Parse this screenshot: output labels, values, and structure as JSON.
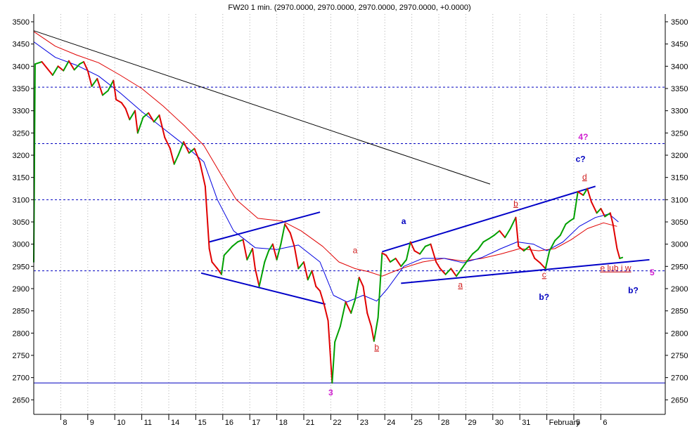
{
  "chart_data": {
    "type": "line",
    "title": "FW20 1 min. (2970.0000, 2970.0000, 2970.0000, 2970.0000, +0.0000)",
    "ylim": [
      2620,
      3530
    ],
    "y_ticks": [
      3500,
      3450,
      3400,
      3350,
      3300,
      3250,
      3200,
      3150,
      3100,
      3050,
      3000,
      2950,
      2900,
      2850,
      2800,
      2750,
      2700,
      2650
    ],
    "x_labels": [
      {
        "label": "8",
        "x": 1
      },
      {
        "label": "9",
        "x": 2
      },
      {
        "label": "10",
        "x": 3
      },
      {
        "label": "11",
        "x": 4
      },
      {
        "label": "14",
        "x": 5
      },
      {
        "label": "15",
        "x": 6
      },
      {
        "label": "16",
        "x": 7
      },
      {
        "label": "17",
        "x": 8
      },
      {
        "label": "18",
        "x": 9
      },
      {
        "label": "21",
        "x": 10
      },
      {
        "label": "22",
        "x": 11
      },
      {
        "label": "23",
        "x": 12
      },
      {
        "label": "24",
        "x": 13
      },
      {
        "label": "25",
        "x": 14
      },
      {
        "label": "28",
        "x": 15
      },
      {
        "label": "29",
        "x": 16
      },
      {
        "label": "30",
        "x": 17
      },
      {
        "label": "31",
        "x": 18
      },
      {
        "label": "February",
        "x": 19
      },
      {
        "label": "5",
        "x": 20
      },
      {
        "label": "6",
        "x": 21
      }
    ],
    "xlim": [
      0.0,
      21.2
    ],
    "grid": {
      "horizontal": false,
      "vertical": true
    },
    "horizontal_levels": [
      {
        "y": 3353,
        "style": "dashed",
        "color": "#0000c0"
      },
      {
        "y": 3226,
        "style": "dashed",
        "color": "#0000c0"
      },
      {
        "y": 3100,
        "style": "dashed",
        "color": "#0000c0"
      },
      {
        "y": 2940,
        "style": "dashed",
        "color": "#0000c0"
      },
      {
        "y": 2688,
        "style": "solid",
        "color": "#0000c0"
      }
    ],
    "price_series": [
      [
        0.0,
        2960
      ],
      [
        0.05,
        3405
      ],
      [
        0.3,
        3410
      ],
      [
        0.5,
        3395
      ],
      [
        0.7,
        3380
      ],
      [
        0.9,
        3400
      ],
      [
        1.1,
        3390
      ],
      [
        1.3,
        3412
      ],
      [
        1.5,
        3392
      ],
      [
        1.7,
        3405
      ],
      [
        1.85,
        3410
      ],
      [
        2.0,
        3390
      ],
      [
        2.15,
        3355
      ],
      [
        2.35,
        3372
      ],
      [
        2.55,
        3335
      ],
      [
        2.75,
        3345
      ],
      [
        2.95,
        3368
      ],
      [
        3.05,
        3325
      ],
      [
        3.25,
        3318
      ],
      [
        3.4,
        3305
      ],
      [
        3.55,
        3280
      ],
      [
        3.75,
        3300
      ],
      [
        3.85,
        3250
      ],
      [
        4.05,
        3285
      ],
      [
        4.25,
        3295
      ],
      [
        4.45,
        3275
      ],
      [
        4.65,
        3290
      ],
      [
        4.85,
        3240
      ],
      [
        5.05,
        3215
      ],
      [
        5.2,
        3180
      ],
      [
        5.35,
        3200
      ],
      [
        5.55,
        3230
      ],
      [
        5.75,
        3205
      ],
      [
        5.95,
        3215
      ],
      [
        6.15,
        3185
      ],
      [
        6.35,
        3130
      ],
      [
        6.5,
        2990
      ],
      [
        6.6,
        2960
      ],
      [
        6.8,
        2945
      ],
      [
        6.95,
        2932
      ],
      [
        7.05,
        2975
      ],
      [
        7.2,
        2985
      ],
      [
        7.35,
        2995
      ],
      [
        7.55,
        3005
      ],
      [
        7.75,
        3010
      ],
      [
        7.9,
        2965
      ],
      [
        8.1,
        2990
      ],
      [
        8.2,
        2945
      ],
      [
        8.35,
        2905
      ],
      [
        8.55,
        2960
      ],
      [
        8.7,
        2985
      ],
      [
        8.85,
        3000
      ],
      [
        9.0,
        2965
      ],
      [
        9.15,
        3000
      ],
      [
        9.3,
        3045
      ],
      [
        9.5,
        3025
      ],
      [
        9.65,
        2995
      ],
      [
        9.8,
        2945
      ],
      [
        10.0,
        2960
      ],
      [
        10.15,
        2920
      ],
      [
        10.3,
        2940
      ],
      [
        10.45,
        2905
      ],
      [
        10.6,
        2895
      ],
      [
        10.75,
        2865
      ],
      [
        10.9,
        2828
      ],
      [
        11.05,
        2688
      ],
      [
        11.15,
        2780
      ],
      [
        11.35,
        2815
      ],
      [
        11.55,
        2870
      ],
      [
        11.75,
        2845
      ],
      [
        11.9,
        2875
      ],
      [
        12.05,
        2925
      ],
      [
        12.2,
        2905
      ],
      [
        12.35,
        2845
      ],
      [
        12.5,
        2815
      ],
      [
        12.6,
        2782
      ],
      [
        12.75,
        2835
      ],
      [
        12.9,
        2980
      ],
      [
        13.05,
        2975
      ],
      [
        13.2,
        2960
      ],
      [
        13.4,
        2968
      ],
      [
        13.6,
        2950
      ],
      [
        13.8,
        2965
      ],
      [
        13.95,
        3005
      ],
      [
        14.1,
        2985
      ],
      [
        14.3,
        2978
      ],
      [
        14.5,
        2995
      ],
      [
        14.7,
        3000
      ],
      [
        14.9,
        2960
      ],
      [
        15.05,
        2945
      ],
      [
        15.25,
        2932
      ],
      [
        15.45,
        2945
      ],
      [
        15.65,
        2928
      ],
      [
        15.85,
        2945
      ],
      [
        16.05,
        2962
      ],
      [
        16.25,
        2978
      ],
      [
        16.45,
        2988
      ],
      [
        16.65,
        3005
      ],
      [
        16.85,
        3012
      ],
      [
        17.05,
        3020
      ],
      [
        17.25,
        3030
      ],
      [
        17.45,
        3015
      ],
      [
        17.65,
        3035
      ],
      [
        17.85,
        3060
      ],
      [
        17.95,
        2995
      ],
      [
        18.15,
        2985
      ],
      [
        18.35,
        2995
      ],
      [
        18.55,
        2968
      ],
      [
        18.75,
        2958
      ],
      [
        18.95,
        2945
      ],
      [
        19.1,
        2985
      ],
      [
        19.3,
        3008
      ],
      [
        19.5,
        3020
      ],
      [
        19.7,
        3045
      ],
      [
        19.85,
        3052
      ],
      [
        20.0,
        3058
      ],
      [
        20.15,
        3118
      ],
      [
        20.35,
        3110
      ],
      [
        20.5,
        3125
      ],
      [
        20.65,
        3095
      ],
      [
        20.85,
        3070
      ],
      [
        21.0,
        3080
      ],
      [
        21.15,
        3062
      ],
      [
        21.35,
        3070
      ],
      [
        21.45,
        3045
      ],
      [
        21.6,
        2990
      ],
      [
        21.7,
        2968
      ],
      [
        21.8,
        2970
      ]
    ],
    "ma_blue": [
      [
        0.0,
        3455
      ],
      [
        0.8,
        3420
      ],
      [
        1.6,
        3402
      ],
      [
        2.4,
        3378
      ],
      [
        3.2,
        3340
      ],
      [
        4.0,
        3298
      ],
      [
        4.8,
        3260
      ],
      [
        5.6,
        3222
      ],
      [
        6.3,
        3185
      ],
      [
        6.8,
        3100
      ],
      [
        7.4,
        3030
      ],
      [
        8.2,
        2992
      ],
      [
        9.0,
        2988
      ],
      [
        9.8,
        2998
      ],
      [
        10.6,
        2960
      ],
      [
        11.1,
        2885
      ],
      [
        11.6,
        2870
      ],
      [
        12.2,
        2885
      ],
      [
        12.7,
        2872
      ],
      [
        13.1,
        2900
      ],
      [
        13.7,
        2950
      ],
      [
        14.4,
        2968
      ],
      [
        15.2,
        2968
      ],
      [
        15.9,
        2958
      ],
      [
        16.6,
        2970
      ],
      [
        17.3,
        2990
      ],
      [
        17.9,
        3005
      ],
      [
        18.5,
        3000
      ],
      [
        19.0,
        2985
      ],
      [
        19.6,
        3005
      ],
      [
        20.2,
        3040
      ],
      [
        20.8,
        3060
      ],
      [
        21.3,
        3068
      ],
      [
        21.65,
        3050
      ]
    ],
    "ma_red": [
      [
        0.0,
        3478
      ],
      [
        0.8,
        3445
      ],
      [
        1.6,
        3425
      ],
      [
        2.4,
        3408
      ],
      [
        3.2,
        3380
      ],
      [
        4.0,
        3350
      ],
      [
        4.8,
        3310
      ],
      [
        5.6,
        3265
      ],
      [
        6.3,
        3222
      ],
      [
        6.9,
        3160
      ],
      [
        7.5,
        3100
      ],
      [
        8.3,
        3058
      ],
      [
        9.2,
        3052
      ],
      [
        9.9,
        3030
      ],
      [
        10.7,
        2995
      ],
      [
        11.3,
        2960
      ],
      [
        11.9,
        2945
      ],
      [
        12.4,
        2938
      ],
      [
        12.9,
        2928
      ],
      [
        13.6,
        2945
      ],
      [
        14.4,
        2960
      ],
      [
        15.2,
        2968
      ],
      [
        15.9,
        2962
      ],
      [
        16.6,
        2968
      ],
      [
        17.3,
        2978
      ],
      [
        18.0,
        2990
      ],
      [
        18.7,
        2985
      ],
      [
        19.3,
        2990
      ],
      [
        19.9,
        3010
      ],
      [
        20.5,
        3035
      ],
      [
        21.1,
        3048
      ],
      [
        21.6,
        3040
      ]
    ],
    "trendlines": [
      {
        "from": [
          0.0,
          3480
        ],
        "to": [
          16.9,
          3135
        ],
        "color": "#000000",
        "width": 1
      },
      {
        "from": [
          6.5,
          3005
        ],
        "to": [
          10.6,
          3072
        ],
        "color": "#0000c8",
        "width": 2
      },
      {
        "from": [
          6.2,
          2935
        ],
        "to": [
          10.8,
          2865
        ],
        "color": "#0000c8",
        "width": 2
      },
      {
        "from": [
          12.9,
          2983
        ],
        "to": [
          20.8,
          3130
        ],
        "color": "#0000c8",
        "width": 2
      },
      {
        "from": [
          13.6,
          2912
        ],
        "to": [
          22.8,
          2965
        ],
        "color": "#0000c8",
        "width": 2
      }
    ],
    "annotations": [
      {
        "text": "3",
        "x": 11.0,
        "y": 2660,
        "color": "#d020d0"
      },
      {
        "text": "a",
        "x": 11.9,
        "y": 2980,
        "color": "#d02020",
        "underline": false
      },
      {
        "text": "b",
        "x": 12.7,
        "y": 2762,
        "color": "#d02020",
        "underline": true
      },
      {
        "text": "a",
        "x": 13.7,
        "y": 3045,
        "color": "#0000c0"
      },
      {
        "text": "a",
        "x": 15.8,
        "y": 2902,
        "color": "#d02020",
        "underline": true
      },
      {
        "text": "b",
        "x": 17.85,
        "y": 3085,
        "color": "#d02020",
        "underline": true
      },
      {
        "text": "c",
        "x": 18.9,
        "y": 2925,
        "color": "#d02020",
        "underline": true
      },
      {
        "text": "b?",
        "x": 18.9,
        "y": 2875,
        "color": "#0000c0"
      },
      {
        "text": "4?",
        "x": 20.35,
        "y": 3235,
        "color": "#d020d0"
      },
      {
        "text": "c?",
        "x": 20.25,
        "y": 3185,
        "color": "#0000c0"
      },
      {
        "text": "d",
        "x": 20.4,
        "y": 3145,
        "color": "#d02020",
        "underline": true
      },
      {
        "text": "e lub i w",
        "x": 21.55,
        "y": 2940,
        "color": "#d02020",
        "underline": true
      },
      {
        "text": "5",
        "x": 22.9,
        "y": 2930,
        "color": "#d020d0"
      },
      {
        "text": "b?",
        "x": 22.2,
        "y": 2890,
        "color": "#0000c0"
      }
    ]
  }
}
